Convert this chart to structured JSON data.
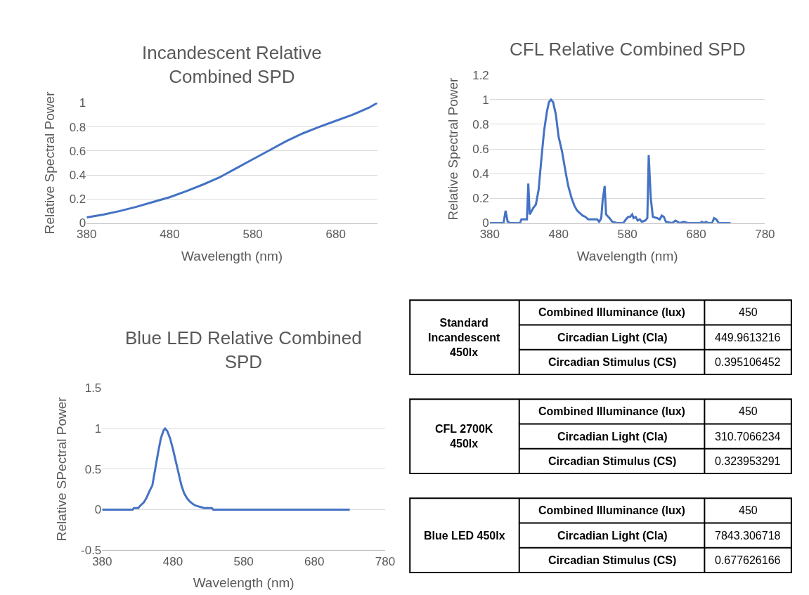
{
  "chart_data": [
    {
      "type": "line",
      "title": "Incandescent Relative Combined SPD",
      "xlabel": "Wavelength (nm)",
      "ylabel": "Relative Spectral Power",
      "xlim": [
        380,
        730
      ],
      "xticks": [
        380,
        480,
        580,
        680
      ],
      "ylim": [
        0,
        1
      ],
      "yticks": [
        0,
        0.2,
        0.4,
        0.6,
        0.8,
        1
      ],
      "grid": "y",
      "marker": "none",
      "line_style": "solid",
      "series": [
        {
          "color": "#4472c4",
          "x": [
            380,
            400,
            420,
            440,
            460,
            480,
            500,
            520,
            540,
            560,
            580,
            600,
            620,
            640,
            660,
            680,
            700,
            720,
            730
          ],
          "values": [
            0.047,
            0.07,
            0.1,
            0.135,
            0.175,
            0.215,
            0.265,
            0.32,
            0.38,
            0.455,
            0.53,
            0.605,
            0.68,
            0.745,
            0.8,
            0.85,
            0.9,
            0.96,
            1.0
          ]
        }
      ]
    },
    {
      "type": "line",
      "title": "CFL Relative Combined SPD",
      "xlabel": "Wavelength (nm)",
      "ylabel": "Relative Spectral Power",
      "xlim": [
        380,
        780
      ],
      "xticks": [
        380,
        480,
        580,
        680,
        780
      ],
      "ylim": [
        0,
        1.2
      ],
      "yticks": [
        0,
        0.2,
        0.4,
        0.6,
        0.8,
        1,
        1.2
      ],
      "grid": "y",
      "marker": "none",
      "line_style": "solid",
      "series": [
        {
          "color": "#4472c4",
          "x": [
            380,
            400,
            403,
            406,
            410,
            424,
            426,
            434,
            436,
            438,
            443,
            447,
            451,
            455,
            459,
            463,
            466,
            469,
            472,
            476,
            480,
            485,
            490,
            494,
            499,
            503,
            507,
            511,
            515,
            519,
            523,
            530,
            536,
            539,
            542,
            544,
            547,
            549,
            554,
            558,
            565,
            574,
            578,
            581,
            584,
            587,
            589,
            592,
            595,
            598,
            601,
            606,
            609,
            611,
            614,
            617,
            623,
            627,
            630,
            633,
            636,
            645,
            650,
            656,
            662,
            668,
            686,
            688,
            692,
            694,
            698,
            703,
            706,
            709,
            713,
            730
          ],
          "values": [
            0,
            0,
            0.1,
            0.01,
            0,
            0,
            0.03,
            0.03,
            0.32,
            0.07,
            0.12,
            0.15,
            0.27,
            0.52,
            0.75,
            0.9,
            0.98,
            1.0,
            0.98,
            0.88,
            0.7,
            0.58,
            0.42,
            0.3,
            0.2,
            0.14,
            0.1,
            0.08,
            0.06,
            0.05,
            0.03,
            0.03,
            0.03,
            0.01,
            0.04,
            0.18,
            0.3,
            0.07,
            0.04,
            0.01,
            0,
            0,
            0.03,
            0.05,
            0.05,
            0.07,
            0.04,
            0.05,
            0.02,
            0.03,
            0.01,
            0.02,
            0.04,
            0.55,
            0.2,
            0.05,
            0.04,
            0.03,
            0.06,
            0.05,
            0.01,
            0,
            0.02,
            0,
            0.01,
            0,
            0,
            0.01,
            0,
            0.01,
            0,
            0,
            0.04,
            0.03,
            0,
            0
          ]
        }
      ]
    },
    {
      "type": "line",
      "title": "Blue LED Relative Combined SPD",
      "xlabel": "Wavelength (nm)",
      "ylabel": "Relative SPectral Power",
      "xlim": [
        380,
        780
      ],
      "xticks": [
        380,
        480,
        580,
        680,
        780
      ],
      "ylim": [
        -0.5,
        1.5
      ],
      "yticks": [
        -0.5,
        0,
        0.5,
        1,
        1.5
      ],
      "grid": "y",
      "marker": "none",
      "line_style": "solid",
      "series": [
        {
          "color": "#4472c4",
          "x": [
            380,
            423,
            425,
            431,
            434,
            439,
            443,
            447,
            451,
            455,
            459,
            463,
            467,
            469,
            472,
            476,
            480,
            484,
            488,
            492,
            496,
            500,
            504,
            508,
            512,
            516,
            520,
            524,
            535,
            537,
            730
          ],
          "values": [
            0,
            0,
            0.02,
            0.02,
            0.05,
            0.09,
            0.15,
            0.23,
            0.3,
            0.5,
            0.7,
            0.88,
            0.98,
            1.0,
            0.97,
            0.88,
            0.75,
            0.6,
            0.45,
            0.3,
            0.2,
            0.14,
            0.1,
            0.07,
            0.05,
            0.04,
            0.03,
            0.02,
            0.02,
            0,
            0
          ]
        }
      ]
    },
    {
      "type": "other",
      "annotations": [
        "Standard Incandescent 450lx",
        "Combined Illuminance (lux)",
        "450",
        "Circadian Light (Cla)",
        "449.9613216",
        "Circadian Stimulus (CS)",
        "0.395106452",
        "CFL 2700K 450lx",
        "Combined Illuminance (lux)",
        "450",
        "Circadian Light (Cla)",
        "310.7066234",
        "Circadian Stimulus (CS)",
        "0.323953291",
        "Blue LED 450lx",
        "Combined Illuminance (lux)",
        "450",
        "Circadian Light (Cla)",
        "7843.306718",
        "Circadian Stimulus (CS)",
        "0.677626166"
      ]
    }
  ]
}
